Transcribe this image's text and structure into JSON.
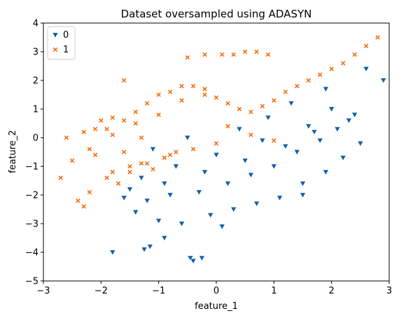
{
  "chart_data": {
    "type": "scatter",
    "title": "Dataset oversampled using ADASYN",
    "xlabel": "feature_1",
    "ylabel": "feature_2",
    "xlim": [
      -3,
      3
    ],
    "ylim": [
      -5,
      4
    ],
    "x_ticks": [
      -3,
      -2,
      -1,
      0,
      1,
      2,
      3
    ],
    "y_ticks": [
      -5,
      -4,
      -3,
      -2,
      -1,
      0,
      1,
      2,
      3,
      4
    ],
    "x_tick_labels": [
      "−3",
      "−2",
      "−1",
      "0",
      "1",
      "2",
      "3"
    ],
    "y_tick_labels": [
      "−5",
      "−4",
      "−3",
      "−2",
      "−1",
      "0",
      "1",
      "2",
      "3",
      "4"
    ],
    "grid": false,
    "legend_position": "top-left",
    "series": [
      {
        "name": "0",
        "marker": "triangle-down",
        "color": "#0f5fa8",
        "x": [
          -1.8,
          -1.25,
          -1.15,
          -0.45,
          -0.4,
          -0.25,
          -1.4,
          -1.0,
          -0.6,
          -0.1,
          0.3,
          0.7,
          1.1,
          1.5,
          1.9,
          2.2,
          2.5,
          2.9,
          -1.6,
          -1.2,
          -0.8,
          -0.3,
          0.2,
          0.6,
          1.0,
          1.4,
          1.8,
          2.1,
          2.4,
          -1.5,
          -0.9,
          -0.2,
          0.5,
          1.2,
          1.7,
          2.3,
          -1.3,
          -0.7,
          0.0,
          0.8,
          1.6,
          2.0,
          -1.1,
          -0.5,
          0.4,
          0.9,
          1.3,
          1.9,
          2.6,
          -0.9,
          0.1,
          1.5
        ],
        "y": [
          -4.0,
          -3.9,
          -3.8,
          -4.2,
          -4.3,
          -4.2,
          -2.6,
          -2.9,
          -3.0,
          -2.7,
          -2.5,
          -2.3,
          -2.1,
          -1.6,
          -1.2,
          -0.7,
          -0.2,
          2.0,
          -2.1,
          -2.2,
          -2.0,
          -1.9,
          -1.6,
          -1.3,
          -1.0,
          -0.5,
          -0.1,
          0.3,
          0.8,
          -1.8,
          -1.6,
          -1.2,
          -0.8,
          -0.3,
          0.2,
          0.6,
          -1.4,
          -1.0,
          -0.6,
          -0.1,
          0.4,
          1.0,
          -0.4,
          0.0,
          0.3,
          0.7,
          1.2,
          1.7,
          2.4,
          -3.5,
          -3.1,
          -2.0
        ]
      },
      {
        "name": "1",
        "marker": "x",
        "color": "#f56a0a",
        "x": [
          -2.7,
          -2.5,
          -2.3,
          -2.1,
          -2.0,
          -1.8,
          -1.6,
          -1.4,
          -1.2,
          -1.0,
          -0.8,
          -0.6,
          -0.4,
          -0.2,
          0.0,
          0.2,
          0.4,
          0.6,
          0.8,
          1.0,
          1.2,
          1.4,
          1.6,
          1.8,
          2.0,
          2.2,
          2.4,
          2.6,
          2.8,
          -1.6,
          -0.5,
          -0.2,
          0.1,
          0.3,
          0.5,
          0.7,
          0.9,
          -2.4,
          -2.2,
          -1.9,
          -1.7,
          -1.5,
          -1.3,
          -1.1,
          -0.9,
          -0.7,
          -2.6,
          -2.2,
          -1.8,
          -1.4,
          -1.0,
          -0.6,
          -0.2,
          0.2,
          0.6,
          1.0,
          -1.8,
          -1.5,
          -1.2,
          -0.8,
          -0.4,
          0.0,
          -2.3,
          -2.1,
          -1.9,
          -1.6,
          -1.3
        ],
        "y": [
          -1.4,
          -0.8,
          -2.4,
          0.3,
          0.6,
          0.7,
          0.6,
          0.9,
          1.2,
          1.5,
          1.6,
          1.8,
          1.8,
          1.7,
          1.4,
          1.2,
          1.0,
          0.9,
          1.1,
          1.3,
          1.6,
          1.8,
          2.0,
          2.2,
          2.4,
          2.6,
          2.9,
          3.2,
          3.5,
          2.0,
          2.8,
          2.9,
          2.9,
          2.9,
          3.0,
          3.0,
          2.9,
          -2.2,
          -1.9,
          -1.4,
          -1.6,
          -1.2,
          -0.9,
          -1.1,
          -0.7,
          -0.5,
          0.0,
          -0.4,
          0.1,
          0.5,
          0.8,
          1.3,
          1.5,
          0.4,
          0.1,
          -0.1,
          -1.2,
          -1.0,
          -0.9,
          -0.6,
          -0.4,
          -0.2,
          0.2,
          -0.6,
          0.3,
          -0.5,
          0.0
        ]
      }
    ]
  }
}
